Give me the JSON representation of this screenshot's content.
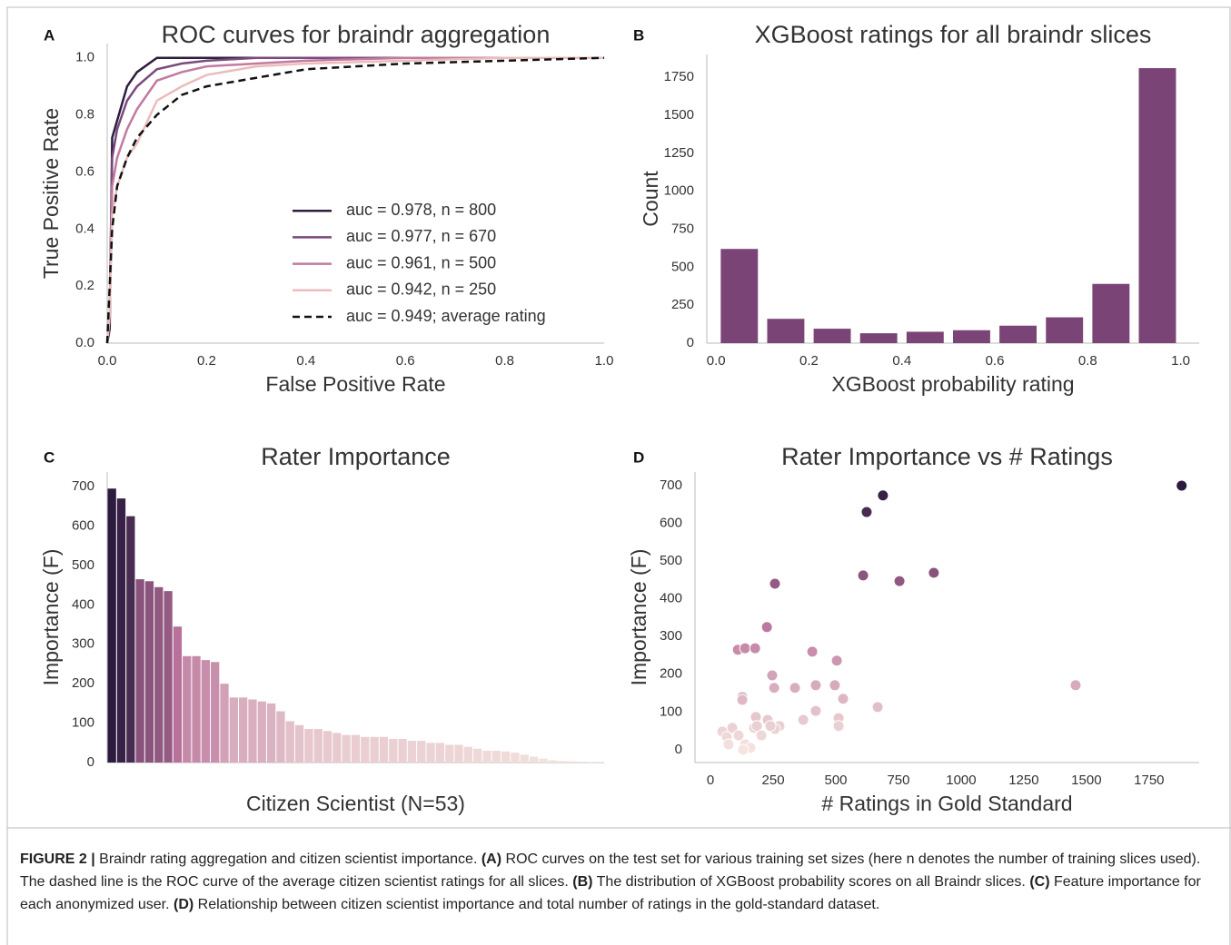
{
  "chart_data": [
    {
      "type": "line",
      "panel_label": "A",
      "title": "ROC curves for braindr aggregation",
      "x_label": "False Positive Rate",
      "y_label": "True Positive Rate",
      "x": [
        0,
        0.005,
        0.01,
        0.02,
        0.04,
        0.06,
        0.1,
        0.15,
        0.2,
        0.3,
        0.4,
        0.6,
        0.8,
        1.0
      ],
      "series": [
        {
          "name": "auc = 0.978, n = 800",
          "color": "#2d1e3e",
          "dashed": false,
          "values": [
            0,
            0.05,
            0.72,
            0.78,
            0.9,
            0.95,
            1.0,
            1.0,
            1.0,
            1.0,
            1.0,
            1.0,
            1.0,
            1.0
          ]
        },
        {
          "name": "auc = 0.977, n = 670",
          "color": "#7a4a7e",
          "dashed": false,
          "values": [
            0,
            0.1,
            0.65,
            0.75,
            0.85,
            0.9,
            0.96,
            0.98,
            0.99,
            1.0,
            1.0,
            1.0,
            1.0,
            1.0
          ]
        },
        {
          "name": "auc = 0.961, n = 500",
          "color": "#c27a9e",
          "dashed": false,
          "values": [
            0,
            0.1,
            0.55,
            0.65,
            0.75,
            0.82,
            0.92,
            0.95,
            0.97,
            0.98,
            0.99,
            1.0,
            1.0,
            1.0
          ]
        },
        {
          "name": "auc = 0.942, n = 250",
          "color": "#ecbcbc",
          "dashed": false,
          "values": [
            0,
            0.1,
            0.45,
            0.55,
            0.65,
            0.7,
            0.85,
            0.9,
            0.94,
            0.97,
            0.98,
            0.99,
            1.0,
            1.0
          ]
        },
        {
          "name": "auc = 0.949; average rating",
          "color": "#111111",
          "dashed": true,
          "values": [
            0,
            0.2,
            0.4,
            0.55,
            0.65,
            0.72,
            0.8,
            0.87,
            0.9,
            0.93,
            0.96,
            0.98,
            0.99,
            1.0
          ]
        }
      ],
      "xlim": [
        0,
        1
      ],
      "ylim": [
        0,
        1.05
      ],
      "xticks": [
        {
          "value": 0,
          "label": "0.0"
        },
        0.2,
        0.4,
        0.6,
        0.8,
        {
          "value": 1,
          "label": "1.0"
        }
      ],
      "yticks": [
        {
          "value": 0,
          "label": "0.0"
        },
        0.2,
        0.4,
        0.6,
        0.8,
        {
          "value": 1,
          "label": "1.0"
        }
      ],
      "legend": "lower right",
      "grid": false
    },
    {
      "type": "histogram",
      "panel_label": "B",
      "title": "XGBoost ratings for all braindr slices",
      "x_label": "XGBoost probability rating",
      "y_label": "Count",
      "color": "#7b4477",
      "bins": [
        0,
        0.1,
        0.2,
        0.3,
        0.4,
        0.5,
        0.6,
        0.7,
        0.8,
        0.9,
        1.0
      ],
      "values": [
        620,
        160,
        95,
        65,
        75,
        85,
        115,
        170,
        390,
        1810
      ],
      "xlim": [
        -0.02,
        1.04
      ],
      "ylim": [
        0,
        1900
      ],
      "xticks": [
        {
          "value": 0,
          "label": "0.0"
        },
        0.2,
        0.4,
        0.6,
        0.8,
        {
          "value": 1,
          "label": "1.0"
        }
      ],
      "yticks": [
        0,
        250,
        500,
        750,
        1000,
        1250,
        1500,
        1750
      ],
      "grid": false
    },
    {
      "type": "bar",
      "panel_label": "C",
      "title": "Rater Importance",
      "x_label": "Citizen Scientist (N=53)",
      "y_label": "Importance (F)",
      "palette": [
        "#f5e4df",
        "#b8709a",
        "#2d1b3f"
      ],
      "categories": [
        null,
        null,
        null,
        null,
        null,
        null,
        null,
        null,
        null,
        null,
        null,
        null,
        null,
        null,
        null,
        null,
        null,
        null,
        null,
        null,
        null,
        null,
        null,
        null,
        null,
        null,
        null,
        null,
        null,
        null,
        null,
        null,
        null,
        null,
        null,
        null,
        null,
        null,
        null,
        null,
        null,
        null,
        null,
        null,
        null,
        null,
        null,
        null,
        null,
        null,
        null,
        null,
        null
      ],
      "values": [
        695,
        670,
        625,
        465,
        460,
        445,
        435,
        345,
        270,
        270,
        260,
        255,
        200,
        165,
        165,
        160,
        155,
        150,
        130,
        105,
        95,
        85,
        85,
        80,
        75,
        70,
        70,
        65,
        65,
        65,
        60,
        60,
        55,
        55,
        50,
        50,
        45,
        45,
        40,
        35,
        30,
        30,
        28,
        25,
        20,
        15,
        10,
        6,
        4,
        3,
        2,
        1,
        1
      ],
      "ylim": [
        0,
        737
      ],
      "yticks": [
        0,
        100,
        200,
        300,
        400,
        500,
        600,
        700
      ],
      "grid": false
    },
    {
      "type": "scatter",
      "panel_label": "D",
      "title": "Rater Importance vs # Ratings",
      "x_label": "# Ratings in Gold Standard",
      "y_label": "Importance (F)",
      "palette": [
        "#f5e4df",
        "#b8709a",
        "#2d1b3f"
      ],
      "x": [
        1880,
        688,
        623,
        891,
        609,
        754,
        257,
        225,
        109,
        138,
        178,
        406,
        504,
        246,
        254,
        337,
        420,
        496,
        529,
        1457,
        127,
        127,
        370,
        420,
        667,
        181,
        228,
        511,
        511,
        275,
        257,
        239,
        174,
        185,
        87,
        47,
        112,
        203,
        65,
        72,
        138,
        159,
        130
      ],
      "values": [
        700,
        674,
        630,
        469,
        462,
        447,
        440,
        325,
        265,
        269,
        269,
        260,
        236,
        197,
        164,
        164,
        171,
        171,
        135,
        171,
        140,
        132,
        79,
        103,
        113,
        87,
        79,
        84,
        63,
        63,
        55,
        63,
        58,
        63,
        58,
        48,
        38,
        38,
        34,
        14,
        14,
        5,
        0
      ],
      "xlim": [
        -62,
        1950
      ],
      "ylim": [
        -34,
        736
      ],
      "xticks": [
        0,
        250,
        500,
        750,
        1000,
        1250,
        1500,
        1750
      ],
      "yticks": [
        0,
        100,
        200,
        300,
        400,
        500,
        600,
        700
      ],
      "grid": false
    }
  ],
  "caption": [
    {
      "text": "FIGURE 2 |",
      "bold": true
    },
    {
      "text": " Braindr rating aggregation and citizen scientist importance. ",
      "bold": false
    },
    {
      "text": "(A)",
      "bold": true
    },
    {
      "text": " ROC curves on the test set for various training set sizes (here n denotes the number of training slices used). The dashed line is the ROC curve of the average citizen scientist ratings for all slices. ",
      "bold": false
    },
    {
      "text": "(B)",
      "bold": true
    },
    {
      "text": " The distribution of XGBoost probability scores on all Braindr slices. ",
      "bold": false
    },
    {
      "text": "(C)",
      "bold": true
    },
    {
      "text": " Feature importance for each anonymized user. ",
      "bold": false
    },
    {
      "text": "(D)",
      "bold": true
    },
    {
      "text": " Relationship between citizen scientist importance and total number of ratings in the gold-standard dataset.",
      "bold": false
    }
  ]
}
